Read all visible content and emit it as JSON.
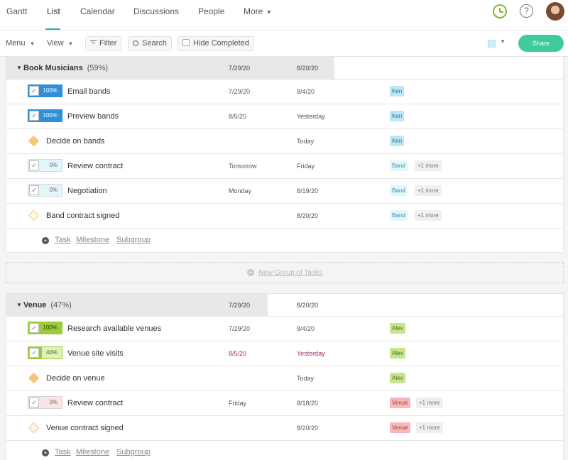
{
  "nav": {
    "tabs": [
      "Gantt",
      "List",
      "Calendar",
      "Discussions",
      "People",
      "More"
    ],
    "help": "?"
  },
  "toolbar": {
    "menu": "Menu",
    "view": "View",
    "filter": "Filter",
    "search": "Search",
    "hide_completed": "Hide Completed",
    "share": "Share"
  },
  "add_labels": {
    "task": "Task",
    "milestone": "Milestone",
    "subgroup": "Subgroup"
  },
  "new_group_label": "New Group of Tasks",
  "groups": [
    {
      "name": "Book Musicians",
      "percent": "(59%)",
      "start": "7/29/20",
      "end": "8/20/20",
      "rows": [
        {
          "type": "task",
          "progress_label": "100%",
          "name": "Email bands",
          "start": "7/29/20",
          "end": "8/4/20",
          "assignee": "Ken",
          "more": ""
        },
        {
          "type": "task",
          "progress_label": "100%",
          "name": "Preview bands",
          "start": "8/5/20",
          "end": "Yesterday",
          "assignee": "Ken",
          "more": ""
        },
        {
          "type": "milestone",
          "name": "Decide on bands",
          "start": "",
          "end": "Today",
          "assignee": "Ken",
          "more": ""
        },
        {
          "type": "task",
          "progress_label": "0%",
          "name": "Review contract",
          "start": "Tomorrow",
          "end": "Friday",
          "assignee": "Band",
          "more": "+1 more"
        },
        {
          "type": "task",
          "progress_label": "0%",
          "name": "Negotiation",
          "start": "Monday",
          "end": "8/19/20",
          "assignee": "Band",
          "more": "+1 more"
        },
        {
          "type": "milestone",
          "name": "Band contract signed",
          "start": "",
          "end": "8/20/20",
          "assignee": "Band",
          "more": "+1 more"
        }
      ]
    },
    {
      "name": "Venue",
      "percent": "(47%)",
      "start": "7/29/20",
      "end": "8/20/20",
      "rows": [
        {
          "type": "task",
          "progress_label": "100%",
          "name": "Research available venues",
          "start": "7/29/20",
          "end": "8/4/20",
          "assignee": "Alex",
          "more": ""
        },
        {
          "type": "task",
          "progress_label": "40%",
          "name": "Venue site visits",
          "start": "8/5/20",
          "end": "Yesterday",
          "assignee": "Alex",
          "more": ""
        },
        {
          "type": "milestone",
          "name": "Decide on venue",
          "start": "",
          "end": "Today",
          "assignee": "Alex",
          "more": ""
        },
        {
          "type": "task",
          "progress_label": "0%",
          "name": "Review contract",
          "start": "Friday",
          "end": "8/18/20",
          "assignee": "Venue",
          "more": "+1 more"
        },
        {
          "type": "milestone",
          "name": "Venue contract signed",
          "start": "",
          "end": "8/20/20",
          "assignee": "Venue",
          "more": "+1 more"
        }
      ]
    }
  ],
  "colors": {
    "blue_fill": "#2f8fd8",
    "blue_light": "#e3f6fb",
    "green_fill": "#9ccc3d",
    "green_light": "#dff0b8",
    "red_light": "#fde3e3",
    "diamond_yellow": "#f6c77a",
    "diamond_yellow_light": "#fde3b0",
    "pill_ken": "#bfe6f2",
    "pill_alex": "#c7e48e",
    "pill_venue": "#f6b9b9",
    "overdue": "#a0286e"
  }
}
